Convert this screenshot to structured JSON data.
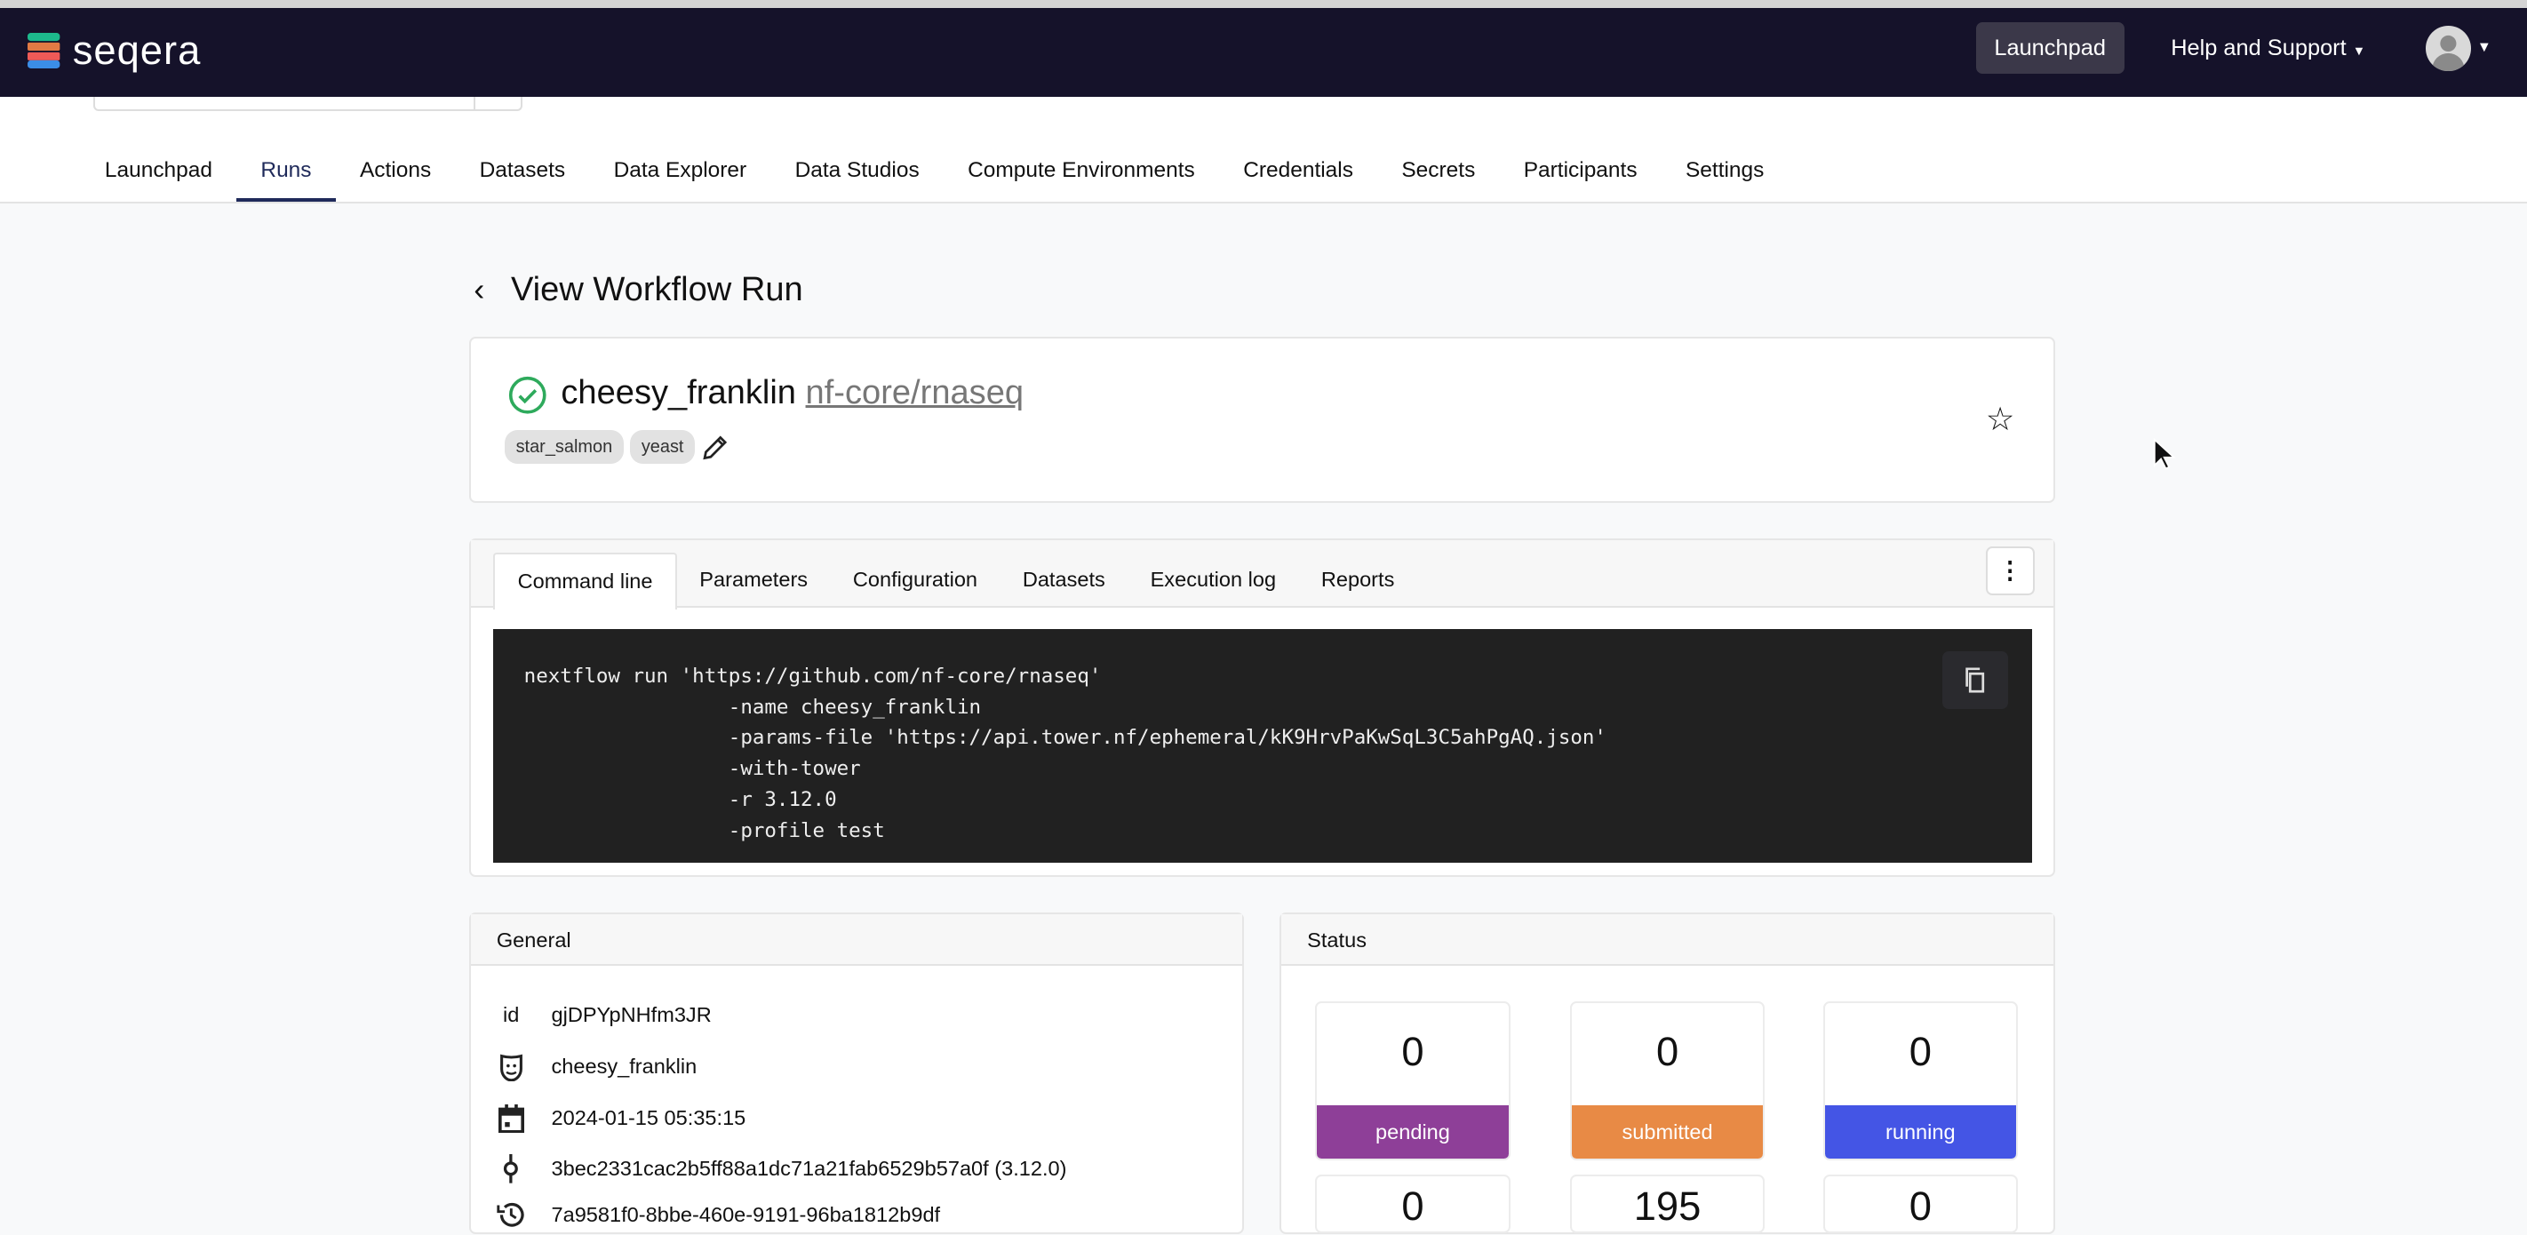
{
  "app": {
    "brand": "seqera"
  },
  "navbar": {
    "launchpad_label": "Launchpad",
    "help_label": "Help and Support"
  },
  "workspace_tabs": [
    {
      "label": "Launchpad"
    },
    {
      "label": "Runs",
      "active": true
    },
    {
      "label": "Actions"
    },
    {
      "label": "Datasets"
    },
    {
      "label": "Data Explorer"
    },
    {
      "label": "Data Studios"
    },
    {
      "label": "Compute Environments"
    },
    {
      "label": "Credentials"
    },
    {
      "label": "Secrets"
    },
    {
      "label": "Participants"
    },
    {
      "label": "Settings"
    }
  ],
  "page": {
    "title": "View Workflow Run"
  },
  "run": {
    "name": "cheesy_franklin",
    "pipeline": "nf-core/rnaseq",
    "status": "succeeded",
    "labels": [
      "star_salmon",
      "yeast"
    ]
  },
  "detail_tabs": [
    {
      "label": "Command line",
      "active": true
    },
    {
      "label": "Parameters"
    },
    {
      "label": "Configuration"
    },
    {
      "label": "Datasets"
    },
    {
      "label": "Execution log"
    },
    {
      "label": "Reports"
    }
  ],
  "command": {
    "text": "nextflow run 'https://github.com/nf-core/rnaseq'\n                 -name cheesy_franklin\n                 -params-file 'https://api.tower.nf/ephemeral/kK9HrvPaKwSqL3C5ahPgAQ.json'\n                 -with-tower\n                 -r 3.12.0\n                 -profile test"
  },
  "general": {
    "title": "General",
    "rows": [
      {
        "icon": "id-label",
        "label": "id",
        "value": "gjDPYpNHfm3JR"
      },
      {
        "icon": "mask-icon",
        "value": "cheesy_franklin"
      },
      {
        "icon": "calendar-icon",
        "value": "2024-01-15 05:35:15"
      },
      {
        "icon": "commit-icon",
        "value": "3bec2331cac2b5ff88a1dc71a21fab6529b57a0f (3.12.0)"
      },
      {
        "icon": "history-icon",
        "value": "7a9581f0-8bbe-460e-9191-96ba1812b9df"
      }
    ]
  },
  "status": {
    "title": "Status",
    "tiles": [
      {
        "value": "0",
        "label": "pending",
        "color": "#8e3f98"
      },
      {
        "value": "0",
        "label": "submitted",
        "color": "#e88a45"
      },
      {
        "value": "0",
        "label": "running",
        "color": "#4455e5"
      },
      {
        "value": "0"
      },
      {
        "value": "195"
      },
      {
        "value": "0"
      }
    ]
  },
  "colors": {
    "navbar": "#15122a",
    "active_tab": "#1f2a5a",
    "success": "#2eaa5c",
    "code_bg": "#212121"
  }
}
